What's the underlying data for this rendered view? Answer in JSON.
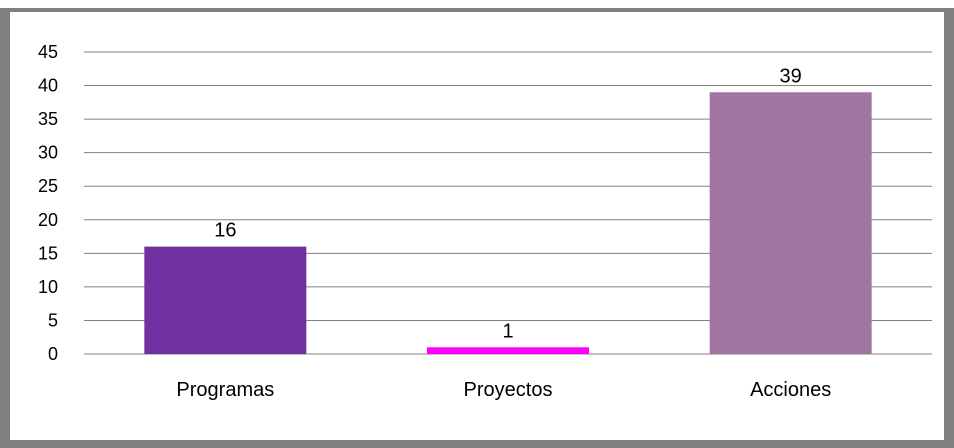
{
  "chart_data": {
    "type": "bar",
    "title": "",
    "xlabel": "",
    "ylabel": "",
    "categories": [
      "Programas",
      "Proyectos",
      "Acciones"
    ],
    "values": [
      16,
      1,
      39
    ],
    "data_labels": [
      "16",
      "1",
      "39"
    ],
    "colors": [
      "#7030A0",
      "#FF00FF",
      "#A076A0"
    ],
    "ylim": [
      0,
      45
    ],
    "yticks": [
      0,
      5,
      10,
      15,
      20,
      25,
      30,
      35,
      40,
      45
    ],
    "ytick_labels": [
      "0",
      "5",
      "10",
      "15",
      "20",
      "25",
      "30",
      "35",
      "40",
      "45"
    ],
    "grid": true,
    "legend": "none"
  }
}
